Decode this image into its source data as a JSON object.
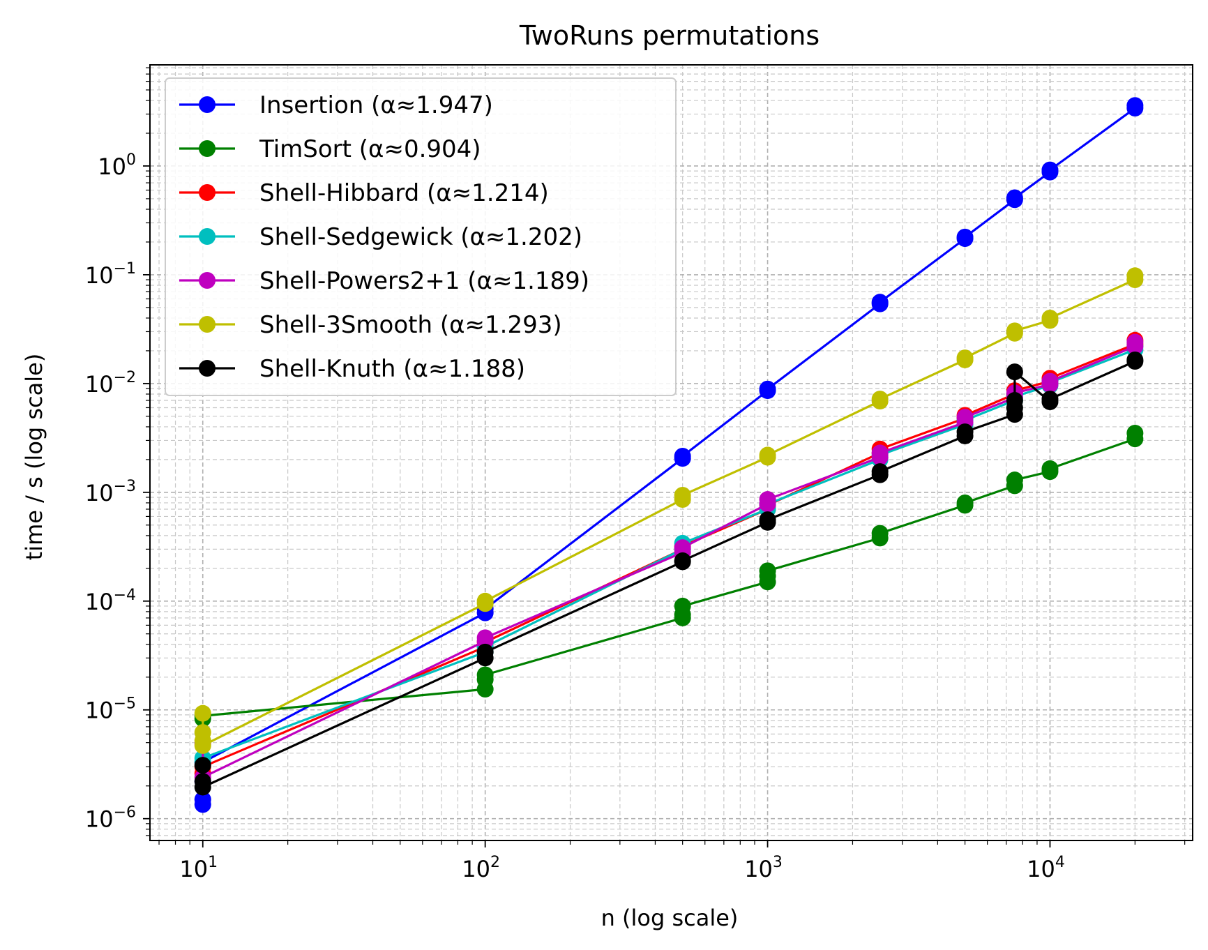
{
  "chart_data": {
    "type": "line",
    "title": "TwoRuns permutations",
    "xlabel": "n (log scale)",
    "ylabel": "time / s (log scale)",
    "xscale": "log",
    "yscale": "log",
    "xlim": [
      6.5,
      32000
    ],
    "ylim": [
      6.3e-07,
      8.5
    ],
    "grid": true,
    "legend_position": "top-left",
    "x_ticks": [
      {
        "value": 10,
        "base": "10",
        "exp": "1"
      },
      {
        "value": 100,
        "base": "10",
        "exp": "2"
      },
      {
        "value": 1000,
        "base": "10",
        "exp": "3"
      },
      {
        "value": 10000,
        "base": "10",
        "exp": "4"
      }
    ],
    "y_ticks": [
      {
        "value": 1e-06,
        "base": "10",
        "exp": "−6"
      },
      {
        "value": 1e-05,
        "base": "10",
        "exp": "−5"
      },
      {
        "value": 0.0001,
        "base": "10",
        "exp": "−4"
      },
      {
        "value": 0.001,
        "base": "10",
        "exp": "−3"
      },
      {
        "value": 0.01,
        "base": "10",
        "exp": "−2"
      },
      {
        "value": 0.1,
        "base": "10",
        "exp": "−1"
      },
      {
        "value": 1,
        "base": "10",
        "exp": "0"
      }
    ],
    "series": [
      {
        "name": "Insertion (α≈1.947)",
        "color": "#0000ff",
        "x": [
          10,
          10,
          10,
          10,
          100,
          100,
          500,
          500,
          1000,
          1000,
          2500,
          2500,
          5000,
          5000,
          7500,
          7500,
          10000,
          10000,
          20000,
          20000
        ],
        "y": [
          1.35e-06,
          1.5e-06,
          2.2e-06,
          3.3e-06,
          7.8e-05,
          8.5e-05,
          0.00205,
          0.00215,
          0.0086,
          0.0089,
          0.054,
          0.056,
          0.215,
          0.222,
          0.49,
          0.51,
          0.88,
          0.92,
          3.4,
          3.6
        ]
      },
      {
        "name": "TimSort (α≈0.904)",
        "color": "#008000",
        "x": [
          10,
          10,
          100,
          100,
          100,
          500,
          500,
          500,
          1000,
          1000,
          1000,
          2500,
          2500,
          5000,
          5000,
          7500,
          7500,
          10000,
          10000,
          20000,
          20000
        ],
        "y": [
          8.3e-06,
          8.8e-06,
          1.55e-05,
          1.9e-05,
          2.1e-05,
          7e-05,
          7.5e-05,
          9e-05,
          0.00015,
          0.00017,
          0.00019,
          0.00038,
          0.00042,
          0.00076,
          0.0008,
          0.00115,
          0.0013,
          0.00155,
          0.00165,
          0.0031,
          0.0035
        ]
      },
      {
        "name": "Shell-Hibbard (α≈1.214)",
        "color": "#ff0000",
        "x": [
          10,
          10,
          100,
          100,
          500,
          500,
          1000,
          1000,
          2500,
          2500,
          5000,
          5000,
          7500,
          7500,
          10000,
          10000,
          20000,
          20000
        ],
        "y": [
          2.6e-06,
          3e-06,
          3.8e-05,
          4.2e-05,
          0.0003,
          0.00032,
          0.0007,
          0.00076,
          0.0023,
          0.0025,
          0.0048,
          0.0051,
          0.008,
          0.0086,
          0.0105,
          0.0112,
          0.023,
          0.025
        ]
      },
      {
        "name": "Shell-Sedgewick (α≈1.202)",
        "color": "#00bfbf",
        "x": [
          10,
          10,
          100,
          100,
          500,
          500,
          1000,
          1000,
          2500,
          2500,
          5000,
          5000,
          7500,
          7500,
          10000,
          10000,
          20000,
          20000
        ],
        "y": [
          3.3e-06,
          3.6e-06,
          3.4e-05,
          3.8e-05,
          0.0003,
          0.00034,
          0.0007,
          0.00078,
          0.002,
          0.0022,
          0.0042,
          0.0046,
          0.007,
          0.0076,
          0.0096,
          0.0102,
          0.0205,
          0.022
        ]
      },
      {
        "name": "Shell-Powers2+1 (α≈1.189)",
        "color": "#bf00bf",
        "x": [
          10,
          10,
          100,
          100,
          500,
          500,
          1000,
          1000,
          2500,
          2500,
          5000,
          5000,
          7500,
          7500,
          10000,
          10000,
          20000,
          20000
        ],
        "y": [
          4.9e-06,
          2.4e-06,
          4.3e-05,
          4.6e-05,
          0.00028,
          0.00031,
          0.00078,
          0.00086,
          0.0021,
          0.0023,
          0.0044,
          0.0049,
          0.0074,
          0.0082,
          0.0098,
          0.0105,
          0.022,
          0.024
        ]
      },
      {
        "name": "Shell-3Smooth (α≈1.293)",
        "color": "#bfbf00",
        "x": [
          10,
          10,
          10,
          10,
          100,
          100,
          500,
          500,
          1000,
          1000,
          2500,
          2500,
          5000,
          5000,
          7500,
          7500,
          10000,
          10000,
          20000,
          20000
        ],
        "y": [
          9.3e-06,
          6.2e-06,
          5.2e-06,
          4.7e-06,
          9.5e-05,
          0.0001,
          0.00086,
          0.00094,
          0.0021,
          0.0022,
          0.0069,
          0.0072,
          0.0165,
          0.0172,
          0.029,
          0.0305,
          0.038,
          0.04,
          0.09,
          0.098
        ]
      },
      {
        "name": "Shell-Knuth (α≈1.188)",
        "color": "#000000",
        "x": [
          10,
          10,
          10,
          100,
          100,
          500,
          500,
          1000,
          1000,
          2500,
          2500,
          5000,
          5000,
          7500,
          7500,
          7500,
          7500,
          10000,
          10000,
          20000,
          20000
        ],
        "y": [
          3.1e-06,
          2.2e-06,
          1.95e-06,
          3e-05,
          3.4e-05,
          0.00023,
          0.000235,
          0.00053,
          0.00056,
          0.00145,
          0.00155,
          0.0033,
          0.0036,
          0.0052,
          0.006,
          0.007,
          0.0128,
          0.0068,
          0.0072,
          0.016,
          0.0165
        ]
      }
    ]
  }
}
